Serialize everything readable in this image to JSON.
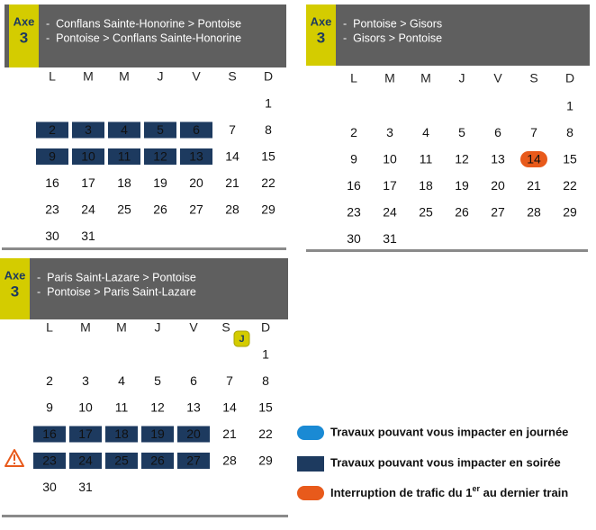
{
  "calendars": [
    {
      "line_label": "Axe",
      "line_number": "3",
      "routes": [
        "-  Conflans Sainte-Honorine > Pontoise",
        "-  Pontoise > Conflans Sainte-Honorine"
      ],
      "weekdays": [
        "L",
        "M",
        "M",
        "J",
        "V",
        "S",
        "D"
      ],
      "weeks": [
        [
          null,
          null,
          null,
          null,
          null,
          null,
          1
        ],
        [
          2,
          3,
          4,
          5,
          6,
          7,
          8
        ],
        [
          9,
          10,
          11,
          12,
          13,
          14,
          15
        ],
        [
          16,
          17,
          18,
          19,
          20,
          21,
          22
        ],
        [
          23,
          24,
          25,
          26,
          27,
          28,
          29
        ],
        [
          30,
          31,
          null,
          null,
          null,
          null,
          null
        ]
      ],
      "evening_works": [
        2,
        3,
        4,
        5,
        6,
        9,
        10,
        11,
        12,
        13
      ],
      "interruptions": []
    },
    {
      "line_label": "Axe",
      "line_number": "3",
      "routes": [
        "-  Pontoise > Gisors",
        "-  Gisors > Pontoise"
      ],
      "weekdays": [
        "L",
        "M",
        "M",
        "J",
        "V",
        "S",
        "D"
      ],
      "weeks": [
        [
          null,
          null,
          null,
          null,
          null,
          null,
          1
        ],
        [
          2,
          3,
          4,
          5,
          6,
          7,
          8
        ],
        [
          9,
          10,
          11,
          12,
          13,
          14,
          15
        ],
        [
          16,
          17,
          18,
          19,
          20,
          21,
          22
        ],
        [
          23,
          24,
          25,
          26,
          27,
          28,
          29
        ],
        [
          30,
          31,
          null,
          null,
          null,
          null,
          null
        ]
      ],
      "evening_works": [],
      "interruptions": [
        14
      ]
    },
    {
      "line_label": "Axe",
      "line_number": "3",
      "routes": [
        "-  Paris Saint-Lazare > Pontoise",
        "-  Pontoise > Paris Saint-Lazare"
      ],
      "weekdays": [
        "L",
        "M",
        "M",
        "J",
        "V",
        {
          "label": "S",
          "badge": "J"
        },
        "D"
      ],
      "weeks": [
        [
          null,
          null,
          null,
          null,
          null,
          null,
          1
        ],
        [
          2,
          3,
          4,
          5,
          6,
          7,
          8
        ],
        [
          9,
          10,
          11,
          12,
          13,
          14,
          15
        ],
        [
          16,
          17,
          18,
          19,
          20,
          21,
          22
        ],
        [
          23,
          24,
          25,
          26,
          27,
          28,
          29
        ],
        [
          30,
          31,
          null,
          null,
          null,
          null,
          null
        ]
      ],
      "evening_works": [
        16,
        17,
        18,
        19,
        20,
        23,
        24,
        25,
        26,
        27
      ],
      "interruptions": []
    }
  ],
  "legend": {
    "day_works": "Travaux pouvant vous impacter en journée",
    "evening_works": "Travaux pouvant vous impacter en soirée",
    "interruption": {
      "before": "Interruption de trafic du 1",
      "superscript": "er",
      "after": " au dernier train"
    }
  }
}
